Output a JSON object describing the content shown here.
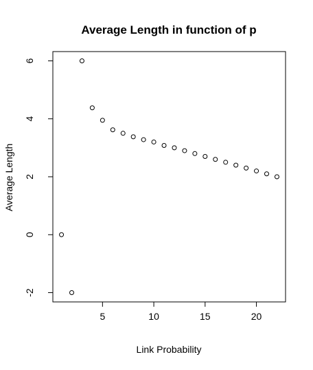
{
  "chart_data": {
    "type": "scatter",
    "title": "Average Length in function of p",
    "xlabel": "Link Probability",
    "ylabel": "Average Length",
    "xlim": [
      0.16,
      22.84
    ],
    "ylim": [
      -2.32,
      6.32
    ],
    "x_ticks": [
      5,
      10,
      15,
      20
    ],
    "y_ticks": [
      -2,
      0,
      2,
      4,
      6
    ],
    "x_tick_labels": [
      "5",
      "10",
      "15",
      "20"
    ],
    "y_tick_labels": [
      "-2",
      "0",
      "2",
      "4",
      "6"
    ],
    "grid": false,
    "x": [
      1,
      2,
      3,
      4,
      5,
      6,
      7,
      8,
      9,
      10,
      11,
      12,
      13,
      14,
      15,
      16,
      17,
      18,
      19,
      20,
      21,
      22
    ],
    "y": [
      0,
      -2,
      6,
      4.38,
      3.95,
      3.62,
      3.5,
      3.38,
      3.28,
      3.2,
      3.08,
      3.0,
      2.9,
      2.8,
      2.7,
      2.6,
      2.5,
      2.4,
      2.3,
      2.2,
      2.1,
      2.0
    ]
  }
}
